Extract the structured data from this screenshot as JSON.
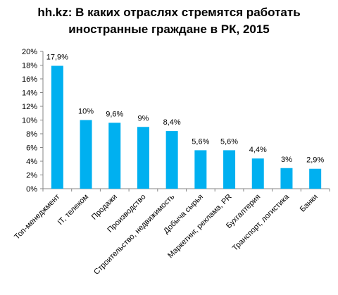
{
  "chart_data": {
    "type": "bar",
    "title_lines": [
      "hh.kz: В каких отраслях стремятся работать",
      "иностранные граждане в РК, 2015"
    ],
    "categories": [
      "Топ-менеджмент",
      "IT, телеком",
      "Продажи",
      "Производство",
      "Строительство, недвижимость",
      "Добыча сырья",
      "Маркетинг, реклама, PR",
      "Бухгалтерия",
      "Транспорт, логистика",
      "Банки"
    ],
    "values": [
      17.9,
      10,
      9.6,
      9,
      8.4,
      5.6,
      5.6,
      4.4,
      3,
      2.9
    ],
    "data_labels": [
      "17,9%",
      "10%",
      "9,6%",
      "9%",
      "8,4%",
      "5,6%",
      "5,6%",
      "4,4%",
      "3%",
      "2,9%"
    ],
    "ylim": [
      0,
      20
    ],
    "yticks": [
      0,
      2,
      4,
      6,
      8,
      10,
      12,
      14,
      16,
      18,
      20
    ],
    "ytick_labels": [
      "0%",
      "2%",
      "4%",
      "6%",
      "8%",
      "10%",
      "12%",
      "14%",
      "16%",
      "18%",
      "20%"
    ],
    "grid": false,
    "bar_color": "#00B0F0"
  }
}
